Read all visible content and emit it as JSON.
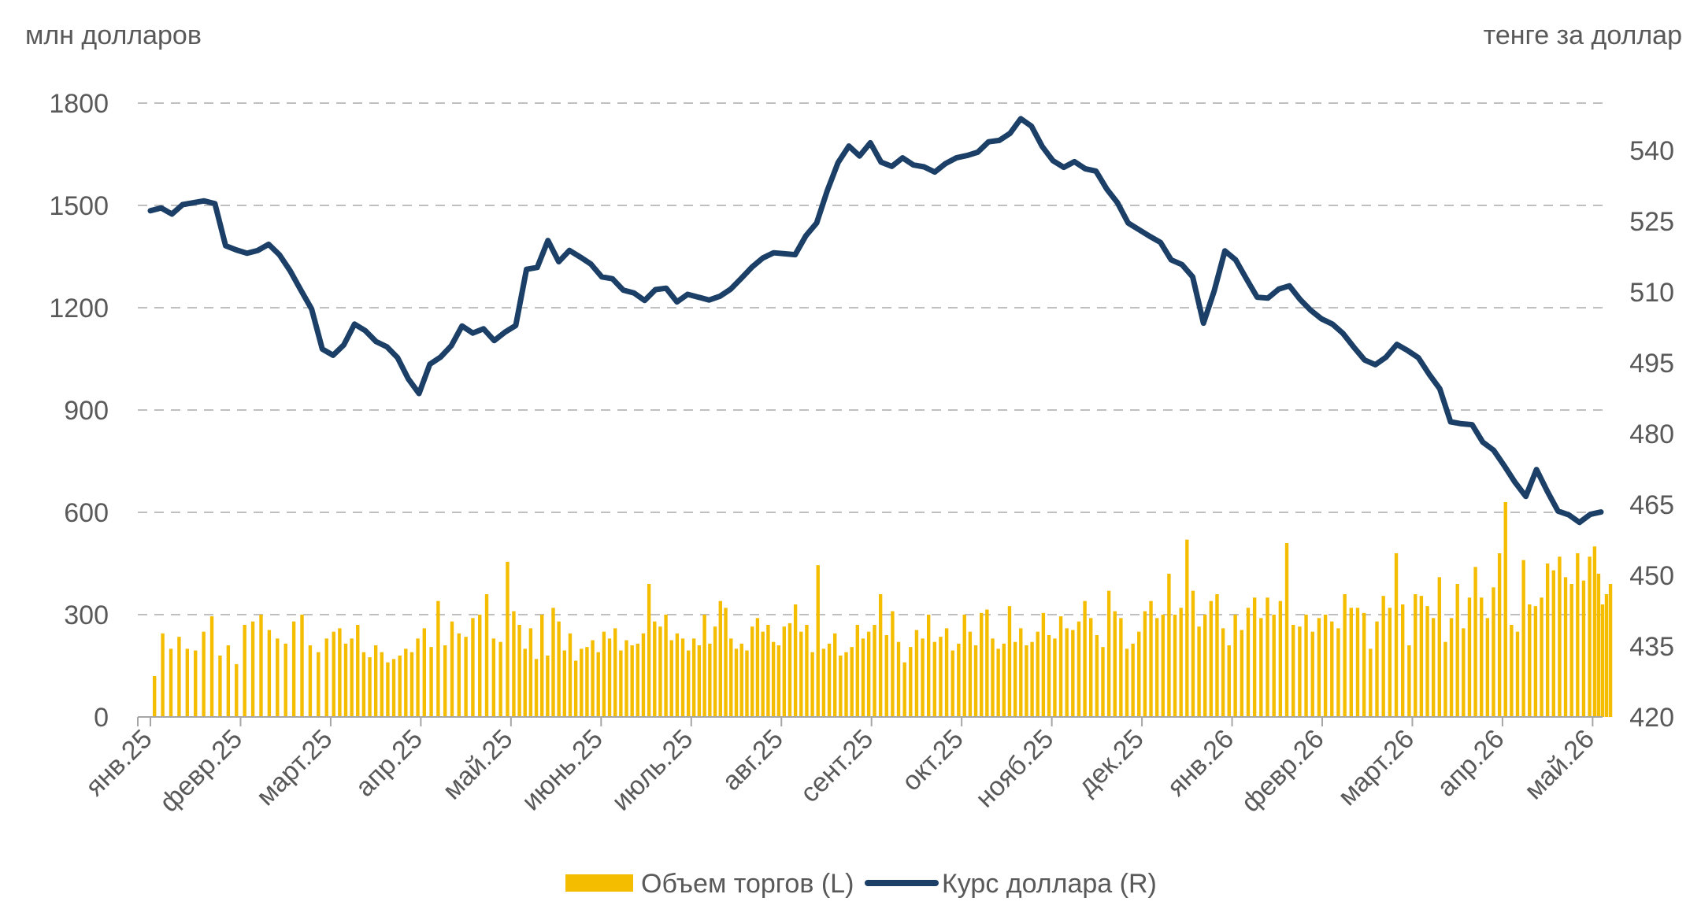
{
  "chart_data": {
    "type": "bar+line",
    "left_axis_title": "млн долларов",
    "right_axis_title": "тенге за доллар",
    "left_axis": {
      "min": 0,
      "max": 1800,
      "ticks": [
        "0",
        "300",
        "600",
        "900",
        "1200",
        "1500",
        "1800"
      ]
    },
    "right_axis": {
      "min": 420,
      "max": 550,
      "ticks": [
        "420",
        "435",
        "450",
        "465",
        "480",
        "495",
        "510",
        "525",
        "540"
      ]
    },
    "grid": true,
    "legend_position": "bottom",
    "month_labels": [
      "янв.25",
      "февр.25",
      "март.25",
      "апр.25",
      "май.25",
      "июнь.25",
      "июль.25",
      "авг.25",
      "сент.25",
      "окт.25",
      "нояб.25",
      "дек.25",
      "янв.26",
      "февр.26",
      "март.26",
      "апр.26",
      "май.26"
    ],
    "series": [
      {
        "name": "Объем торгов (L)",
        "kind": "bar",
        "axis": "left",
        "color": "#F5BD00",
        "daily_values_by_month": [
          [
            120,
            245,
            200,
            235,
            200,
            195,
            250,
            295,
            180,
            210,
            155
          ],
          [
            270,
            280,
            300,
            255,
            230,
            215,
            280,
            300,
            210,
            190,
            230
          ],
          [
            250,
            260,
            215,
            230,
            270,
            190,
            175,
            210,
            190,
            160,
            170,
            180,
            200,
            190,
            230
          ],
          [
            260,
            205,
            340,
            210,
            280,
            245,
            235,
            290,
            300,
            360,
            230,
            220,
            455
          ],
          [
            310,
            270,
            200,
            260,
            170,
            300,
            180,
            320,
            280,
            195,
            245,
            165,
            200,
            205,
            225,
            190
          ],
          [
            250,
            230,
            260,
            195,
            225,
            210,
            215,
            245,
            390,
            280,
            265,
            300,
            225,
            245,
            230,
            195
          ],
          [
            230,
            210,
            300,
            215,
            265,
            340,
            320,
            230,
            200,
            215,
            195,
            265,
            290,
            250,
            270,
            220,
            210
          ],
          [
            265,
            275,
            330,
            250,
            270,
            190,
            445,
            200,
            215,
            245,
            180,
            190,
            205,
            270,
            230,
            250
          ],
          [
            270,
            360,
            240,
            310,
            220,
            160,
            205,
            255,
            230,
            300,
            220,
            235,
            260,
            195,
            215
          ],
          [
            300,
            250,
            210,
            305,
            315,
            230,
            200,
            215,
            325,
            220,
            260,
            210,
            220,
            250,
            305,
            240
          ],
          [
            230,
            295,
            260,
            255,
            280,
            340,
            290,
            240,
            205,
            370,
            310,
            290,
            200,
            215,
            250
          ],
          [
            310,
            340,
            290,
            300,
            420,
            300,
            320,
            520,
            370,
            265,
            300,
            340,
            360,
            260,
            210
          ],
          [
            300,
            255,
            320,
            350,
            290,
            350,
            300,
            340,
            510,
            270,
            265,
            300,
            250,
            290
          ],
          [
            300,
            280,
            260,
            360,
            320,
            320,
            305,
            200,
            280,
            355,
            320,
            480,
            330,
            210
          ],
          [
            360,
            355,
            325,
            290,
            410,
            220,
            290,
            390,
            260,
            350,
            440,
            350,
            290,
            380,
            480
          ],
          [
            630,
            270,
            250,
            460,
            330,
            325,
            350,
            450,
            430,
            470,
            410,
            390,
            480,
            400,
            470
          ],
          [
            500,
            420,
            330,
            360,
            390
          ]
        ]
      },
      {
        "name": "Курс доллара (R)",
        "kind": "line",
        "axis": "right",
        "color": "#1B3F66",
        "weekly_values": [
          527.2,
          527.8,
          526.5,
          528.5,
          528.9,
          529.3,
          528.7,
          519.8,
          518.9,
          518.2,
          518.8,
          520.1,
          517.9,
          514.5,
          510.4,
          506.4,
          497.9,
          496.6,
          498.8,
          503.2,
          501.8,
          499.5,
          498.4,
          496.1,
          491.6,
          488.5,
          494.7,
          496.2,
          498.6,
          502.8,
          501.3,
          502.2,
          499.7,
          501.5,
          502.9,
          514.8,
          515.2,
          520.9,
          516.4,
          518.8,
          517.4,
          515.9,
          513.2,
          512.8,
          510.4,
          509.8,
          508.2,
          510.5,
          510.8,
          507.9,
          509.5,
          508.9,
          508.3,
          509.1,
          510.6,
          512.9,
          515.3,
          517.2,
          518.3,
          518.1,
          517.9,
          521.9,
          524.6,
          531.5,
          537.4,
          540.9,
          538.8,
          541.6,
          537.5,
          536.6,
          538.4,
          536.9,
          536.5,
          535.4,
          537.2,
          538.4,
          538.9,
          539.6,
          541.8,
          542.1,
          543.6,
          546.7,
          545.1,
          540.8,
          537.8,
          536.4,
          537.6,
          536.1,
          535.6,
          531.8,
          528.9,
          524.6,
          523.2,
          521.8,
          520.5,
          516.8,
          515.8,
          513.2,
          503.4,
          510.2,
          518.7,
          516.8,
          512.8,
          508.9,
          508.7,
          510.6,
          511.3,
          508.4,
          506.1,
          504.3,
          503.2,
          501.2,
          498.3,
          495.6,
          494.6,
          496.2,
          498.9,
          497.6,
          496.1,
          492.6,
          489.5,
          482.5,
          482.1,
          481.9,
          478.2,
          476.5,
          473.2,
          469.7,
          466.7,
          472.4,
          467.8,
          463.6,
          462.8,
          461.2,
          462.9,
          463.4
        ]
      }
    ]
  }
}
